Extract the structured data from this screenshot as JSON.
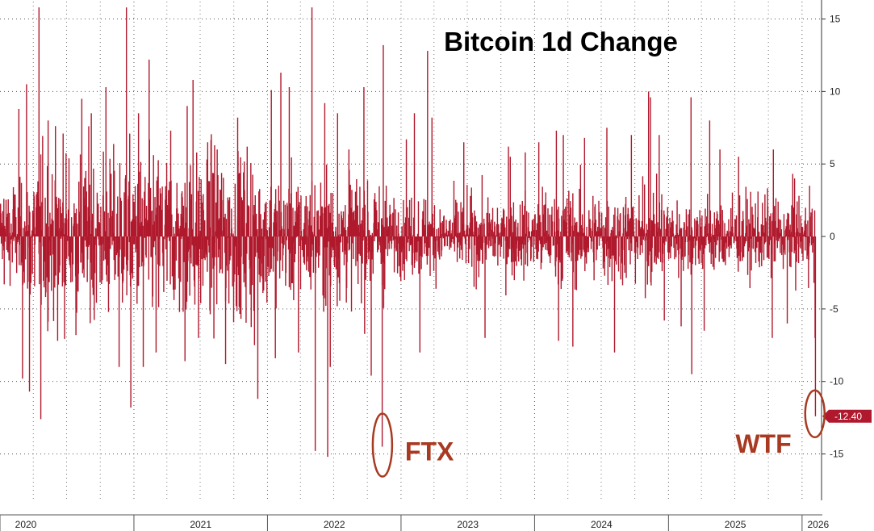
{
  "chart_data": {
    "type": "bar",
    "title": "Bitcoin 1d Change",
    "xlabel": "",
    "ylabel": "",
    "ylim": [
      -18.2,
      16.2
    ],
    "yticks": [
      15,
      10,
      5,
      0,
      -5,
      -10,
      -15
    ],
    "ytick_labels": [
      "15",
      "10",
      "5",
      "0",
      "-5",
      "-10",
      "-15"
    ],
    "x_range": [
      "2020-01-01",
      "2026-02-10"
    ],
    "xticks": [
      "2020",
      "2021",
      "2022",
      "2023",
      "2024",
      "2025",
      "2026"
    ],
    "grid": true,
    "bar_color": "#b0192d",
    "last_value": -12.4,
    "last_value_label": "-12.40",
    "annotations": [
      {
        "text": "FTX",
        "date": "2022-11-09",
        "value": -14.5,
        "color": "#a83a22"
      },
      {
        "text": "WTF",
        "date": "2026-02-05",
        "value": -12.4,
        "color": "#a83a22"
      }
    ],
    "series": [
      {
        "values": [
          {
            "date": "2020-01-10",
            "v": 2.6
          },
          {
            "date": "2020-02-05",
            "v": 3.4
          },
          {
            "date": "2020-02-20",
            "v": 8.8
          },
          {
            "date": "2020-03-01",
            "v": -9.8
          },
          {
            "date": "2020-03-12",
            "v": 10.5
          },
          {
            "date": "2020-03-20",
            "v": -10.7
          },
          {
            "date": "2020-04-15",
            "v": 15.8
          },
          {
            "date": "2020-04-20",
            "v": -12.6
          },
          {
            "date": "2020-05-10",
            "v": 8.0
          },
          {
            "date": "2020-06-05",
            "v": -7.2
          },
          {
            "date": "2020-06-20",
            "v": 7.1
          },
          {
            "date": "2020-07-25",
            "v": -6.8
          },
          {
            "date": "2020-08-10",
            "v": 9.5
          },
          {
            "date": "2020-09-05",
            "v": 8.5
          },
          {
            "date": "2020-10-15",
            "v": 10.3
          },
          {
            "date": "2020-11-20",
            "v": -9.0
          },
          {
            "date": "2020-12-10",
            "v": 15.8
          },
          {
            "date": "2020-12-22",
            "v": -11.8
          },
          {
            "date": "2021-01-12",
            "v": 8.5
          },
          {
            "date": "2021-01-25",
            "v": -9.0
          },
          {
            "date": "2021-02-10",
            "v": 12.2
          },
          {
            "date": "2021-03-01",
            "v": -8.0
          },
          {
            "date": "2021-04-10",
            "v": 7.3
          },
          {
            "date": "2021-05-19",
            "v": -8.6
          },
          {
            "date": "2021-05-25",
            "v": 9.0
          },
          {
            "date": "2021-06-10",
            "v": 10.8
          },
          {
            "date": "2021-06-25",
            "v": -7.0
          },
          {
            "date": "2021-07-20",
            "v": 6.5
          },
          {
            "date": "2021-08-15",
            "v": 6.0
          },
          {
            "date": "2021-09-07",
            "v": -8.8
          },
          {
            "date": "2021-10-10",
            "v": 8.2
          },
          {
            "date": "2021-11-05",
            "v": 6.2
          },
          {
            "date": "2021-11-25",
            "v": -7.5
          },
          {
            "date": "2021-12-04",
            "v": -11.2
          },
          {
            "date": "2022-01-10",
            "v": 10.1
          },
          {
            "date": "2022-01-21",
            "v": -8.4
          },
          {
            "date": "2022-02-05",
            "v": 11.3
          },
          {
            "date": "2022-02-28",
            "v": 10.3
          },
          {
            "date": "2022-03-25",
            "v": -8.0
          },
          {
            "date": "2022-05-01",
            "v": 15.8
          },
          {
            "date": "2022-05-10",
            "v": -14.8
          },
          {
            "date": "2022-06-05",
            "v": 9.2
          },
          {
            "date": "2022-06-13",
            "v": -15.2
          },
          {
            "date": "2022-06-20",
            "v": -9.0
          },
          {
            "date": "2022-07-10",
            "v": 8.5
          },
          {
            "date": "2022-08-10",
            "v": 6.0
          },
          {
            "date": "2022-09-20",
            "v": 10.3
          },
          {
            "date": "2022-10-10",
            "v": -9.6
          },
          {
            "date": "2022-11-09",
            "v": -14.5
          },
          {
            "date": "2022-11-12",
            "v": 13.2
          },
          {
            "date": "2023-01-14",
            "v": 6.7
          },
          {
            "date": "2023-02-05",
            "v": 8.5
          },
          {
            "date": "2023-02-20",
            "v": -8.0
          },
          {
            "date": "2023-03-13",
            "v": 12.8
          },
          {
            "date": "2023-03-25",
            "v": 8.2
          },
          {
            "date": "2023-06-20",
            "v": 6.5
          },
          {
            "date": "2023-08-17",
            "v": -7.0
          },
          {
            "date": "2023-10-20",
            "v": 6.2
          },
          {
            "date": "2023-10-25",
            "v": 5.5
          },
          {
            "date": "2023-12-05",
            "v": 5.8
          },
          {
            "date": "2024-01-11",
            "v": 6.5
          },
          {
            "date": "2024-02-28",
            "v": 7.3
          },
          {
            "date": "2024-03-05",
            "v": -7.2
          },
          {
            "date": "2024-03-18",
            "v": 7.0
          },
          {
            "date": "2024-04-13",
            "v": -7.6
          },
          {
            "date": "2024-05-15",
            "v": 6.8
          },
          {
            "date": "2024-07-15",
            "v": 7.5
          },
          {
            "date": "2024-08-05",
            "v": -8.0
          },
          {
            "date": "2024-09-20",
            "v": 7.0
          },
          {
            "date": "2024-11-06",
            "v": 10.0
          },
          {
            "date": "2024-11-11",
            "v": 9.6
          },
          {
            "date": "2024-12-05",
            "v": 7.0
          },
          {
            "date": "2024-12-19",
            "v": -5.8
          },
          {
            "date": "2025-02-03",
            "v": -6.2
          },
          {
            "date": "2025-03-02",
            "v": 9.6
          },
          {
            "date": "2025-03-04",
            "v": -9.5
          },
          {
            "date": "2025-04-07",
            "v": -6.5
          },
          {
            "date": "2025-04-22",
            "v": 8.0
          },
          {
            "date": "2025-05-20",
            "v": 6.0
          },
          {
            "date": "2025-07-10",
            "v": 5.5
          },
          {
            "date": "2025-10-10",
            "v": -7.0
          },
          {
            "date": "2025-10-13",
            "v": 6.0
          },
          {
            "date": "2025-11-20",
            "v": -6.0
          },
          {
            "date": "2025-12-10",
            "v": 4.0
          },
          {
            "date": "2026-01-20",
            "v": 3.5
          },
          {
            "date": "2026-02-01",
            "v": -3.2
          },
          {
            "date": "2026-02-03",
            "v": 1.8
          },
          {
            "date": "2026-02-04",
            "v": -7.0
          },
          {
            "date": "2026-02-05",
            "v": -12.4
          }
        ]
      }
    ]
  }
}
